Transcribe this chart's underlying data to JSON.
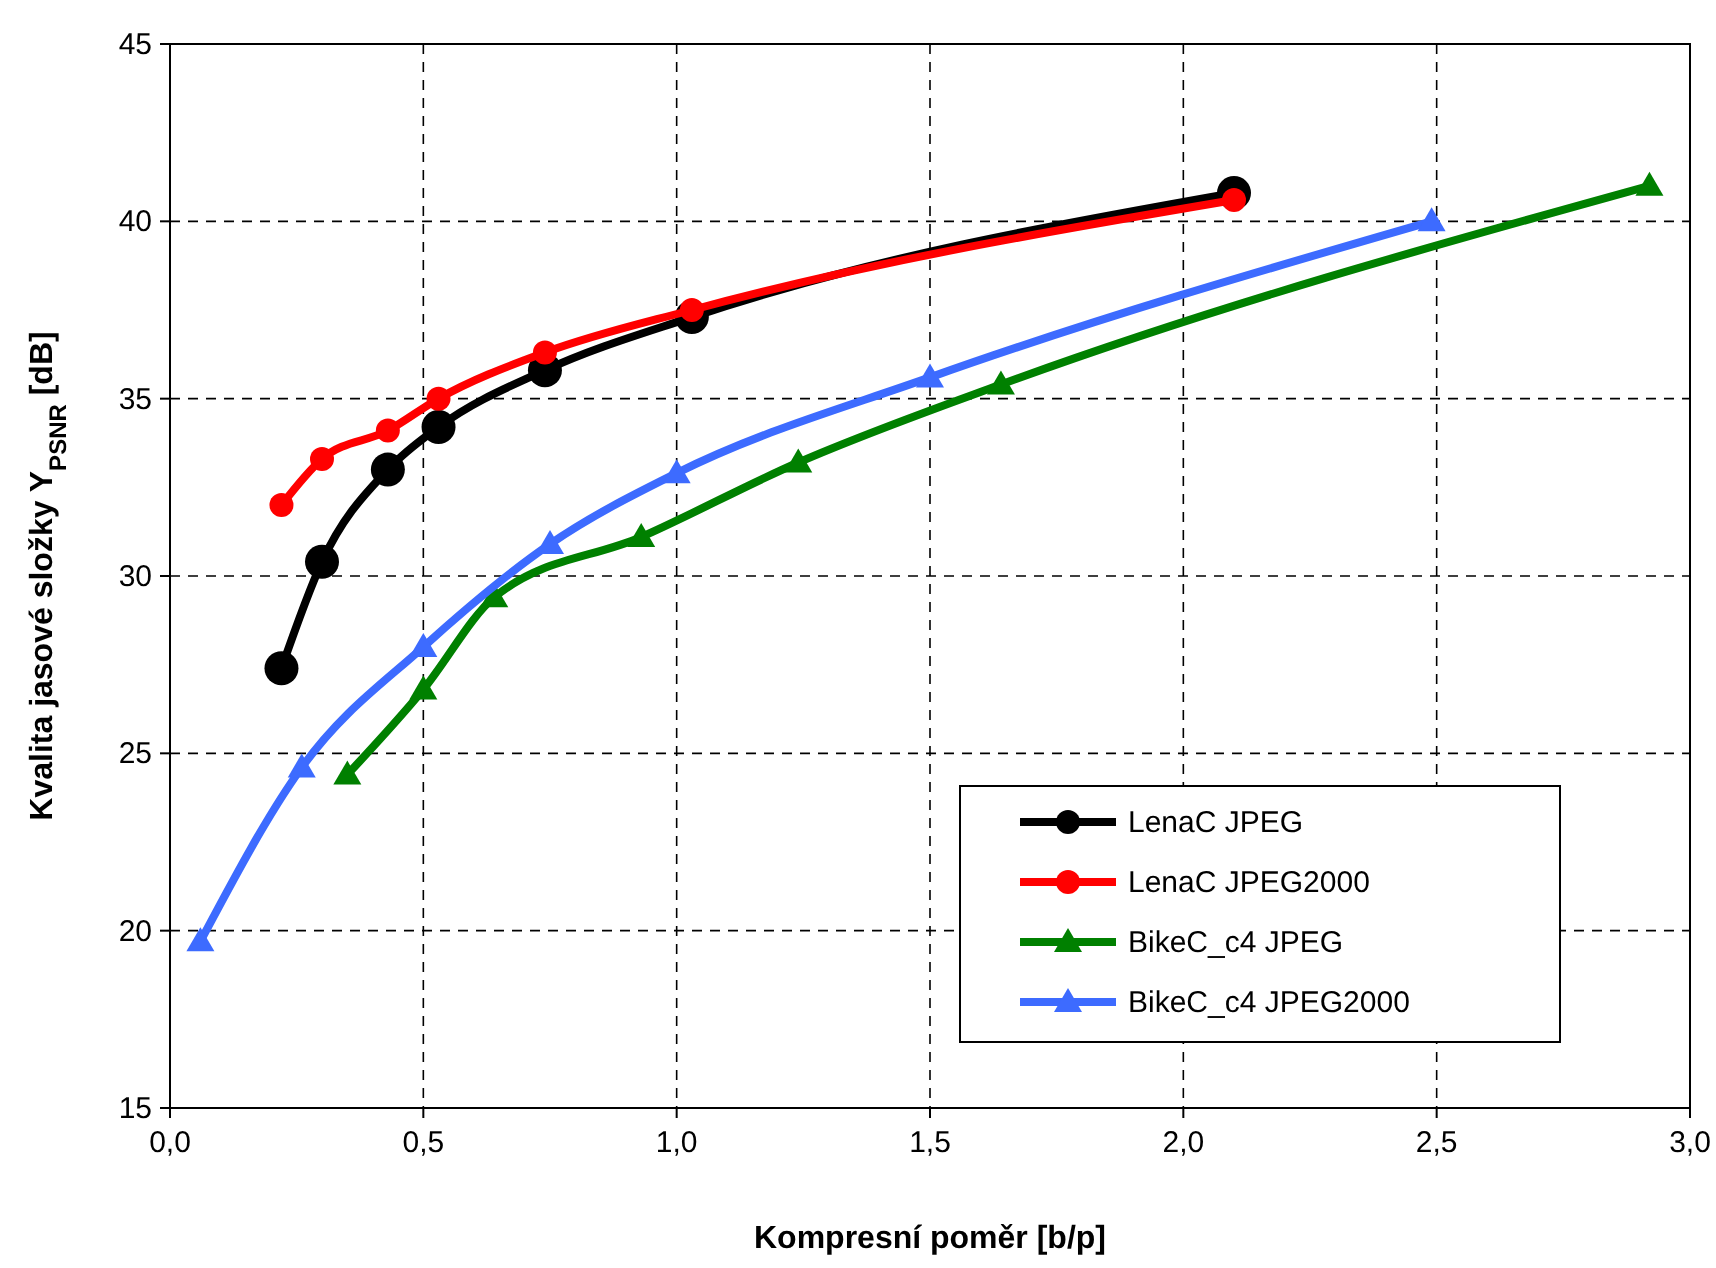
{
  "chart_data": {
    "type": "line",
    "xlabel": "Kompresní poměr [b/p]",
    "ylabel": "Kvalita jasové složky Y$_{PSNR}$ [dB]",
    "xlim": [
      0,
      3
    ],
    "xticks": [
      {
        "value": 0,
        "label": "0,0"
      },
      {
        "value": 0.5,
        "label": "0,5"
      },
      {
        "value": 1,
        "label": "1,0"
      },
      {
        "value": 1.5,
        "label": "1,5"
      },
      {
        "value": 2,
        "label": "2,0"
      },
      {
        "value": 2.5,
        "label": "2,5"
      },
      {
        "value": 3,
        "label": "3,0"
      }
    ],
    "ylim": [
      15,
      45
    ],
    "yticks": [
      15,
      20,
      25,
      30,
      35,
      40,
      45
    ],
    "grid": true,
    "legend": "bottom right",
    "line_style": "solid",
    "series": [
      {
        "name": "LenaC JPEG",
        "color": "#000000",
        "marker": "circle",
        "x": [
          0.22,
          0.3,
          0.43,
          0.53,
          0.74,
          1.03,
          2.1
        ],
        "values": [
          27.4,
          30.4,
          33.0,
          34.2,
          35.8,
          37.3,
          40.8
        ]
      },
      {
        "name": "LenaC JPEG2000",
        "color": "#ff0000",
        "marker": "circle",
        "x": [
          0.22,
          0.3,
          0.43,
          0.53,
          0.74,
          1.03,
          2.1
        ],
        "values": [
          32.0,
          33.3,
          34.1,
          35.0,
          36.3,
          37.5,
          40.6
        ]
      },
      {
        "name": "BikeC_c4 JPEG",
        "color": "#008000",
        "marker": "triangle",
        "x": [
          0.35,
          0.5,
          0.64,
          0.93,
          1.24,
          1.64,
          2.92
        ],
        "values": [
          24.4,
          26.8,
          29.4,
          31.1,
          33.2,
          35.4,
          41.0
        ]
      },
      {
        "name": "BikeC_c4 JPEG2000",
        "color": "#3d6bff",
        "marker": "triangle",
        "x": [
          0.06,
          0.26,
          0.5,
          0.75,
          1.0,
          1.5,
          2.49
        ],
        "values": [
          19.7,
          24.6,
          28.0,
          30.9,
          32.9,
          35.6,
          40.0
        ]
      }
    ]
  }
}
